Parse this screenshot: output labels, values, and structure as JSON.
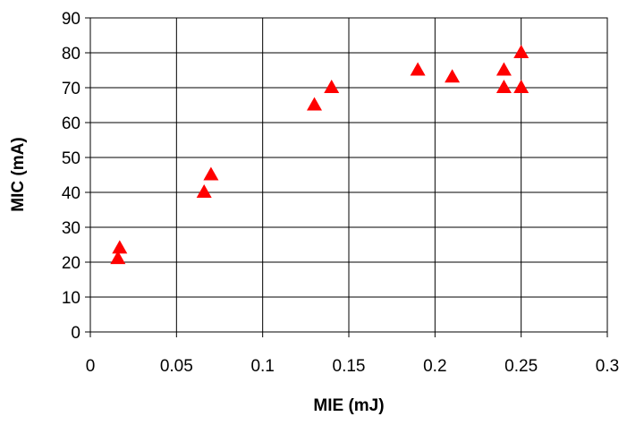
{
  "chart_data": {
    "type": "scatter",
    "title": "",
    "xlabel": "MIE (mJ)",
    "ylabel": "MIC (mA)",
    "xlim": [
      0,
      0.3
    ],
    "ylim": [
      0,
      90
    ],
    "x_ticks": [
      0,
      0.05,
      0.1,
      0.15,
      0.2,
      0.25,
      0.3
    ],
    "x_tick_labels": [
      "0",
      "0.05",
      "0.1",
      "0.15",
      "0.2",
      "0.25",
      "0.3"
    ],
    "y_ticks": [
      0,
      10,
      20,
      30,
      40,
      50,
      60,
      70,
      80,
      90
    ],
    "y_tick_labels": [
      "0",
      "10",
      "20",
      "30",
      "40",
      "50",
      "60",
      "70",
      "80",
      "90"
    ],
    "grid": true,
    "legend": "none",
    "marker": "triangle",
    "marker_color": "#ff0000",
    "series": [
      {
        "x": [
          0.016,
          0.017,
          0.066,
          0.07,
          0.13,
          0.14,
          0.19,
          0.21,
          0.24,
          0.24,
          0.25,
          0.25
        ],
        "y": [
          21,
          24,
          40,
          45,
          65,
          70,
          75,
          73,
          75,
          70,
          80,
          70
        ]
      }
    ]
  }
}
